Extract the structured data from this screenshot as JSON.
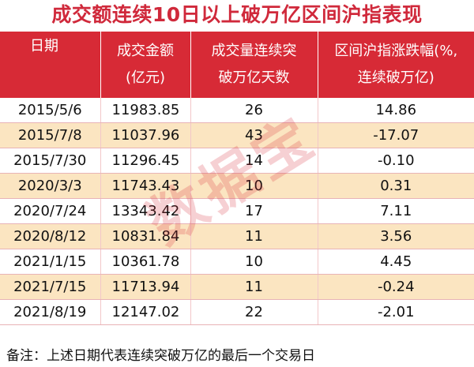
{
  "title": "成交额连续10日以上破万亿区间沪指表现",
  "headers": [
    {
      "line1": "日期",
      "line2": ""
    },
    {
      "line1": "成交金额",
      "line2": "(亿元)"
    },
    {
      "line1": "成交量连续突",
      "line2": "破万亿天数"
    },
    {
      "line1": "区间沪指涨跌幅(%,",
      "line2": "连续破万亿)"
    }
  ],
  "rows": [
    {
      "date": "2015/5/6",
      "amount": "11983.85",
      "days": "26",
      "change": "14.86"
    },
    {
      "date": "2015/7/8",
      "amount": "11037.96",
      "days": "43",
      "change": "-17.07"
    },
    {
      "date": "2015/7/30",
      "amount": "11296.45",
      "days": "14",
      "change": "-0.10"
    },
    {
      "date": "2020/3/3",
      "amount": "11743.43",
      "days": "10",
      "change": "0.31"
    },
    {
      "date": "2020/7/24",
      "amount": "13343.42",
      "days": "17",
      "change": "7.11"
    },
    {
      "date": "2020/8/12",
      "amount": "10831.84",
      "days": "11",
      "change": "3.56"
    },
    {
      "date": "2021/1/15",
      "amount": "10361.78",
      "days": "10",
      "change": "4.45"
    },
    {
      "date": "2021/7/15",
      "amount": "11713.94",
      "days": "11",
      "change": "-0.24"
    },
    {
      "date": "2021/8/19",
      "amount": "12147.02",
      "days": "22",
      "change": "-2.01"
    }
  ],
  "note": "备注：上述日期代表连续突破万亿的最后一个交易日",
  "watermark": "数据宝",
  "colors": {
    "accent": "#d72a36",
    "title": "#d0293b",
    "stripe": "#fbe5c1"
  }
}
